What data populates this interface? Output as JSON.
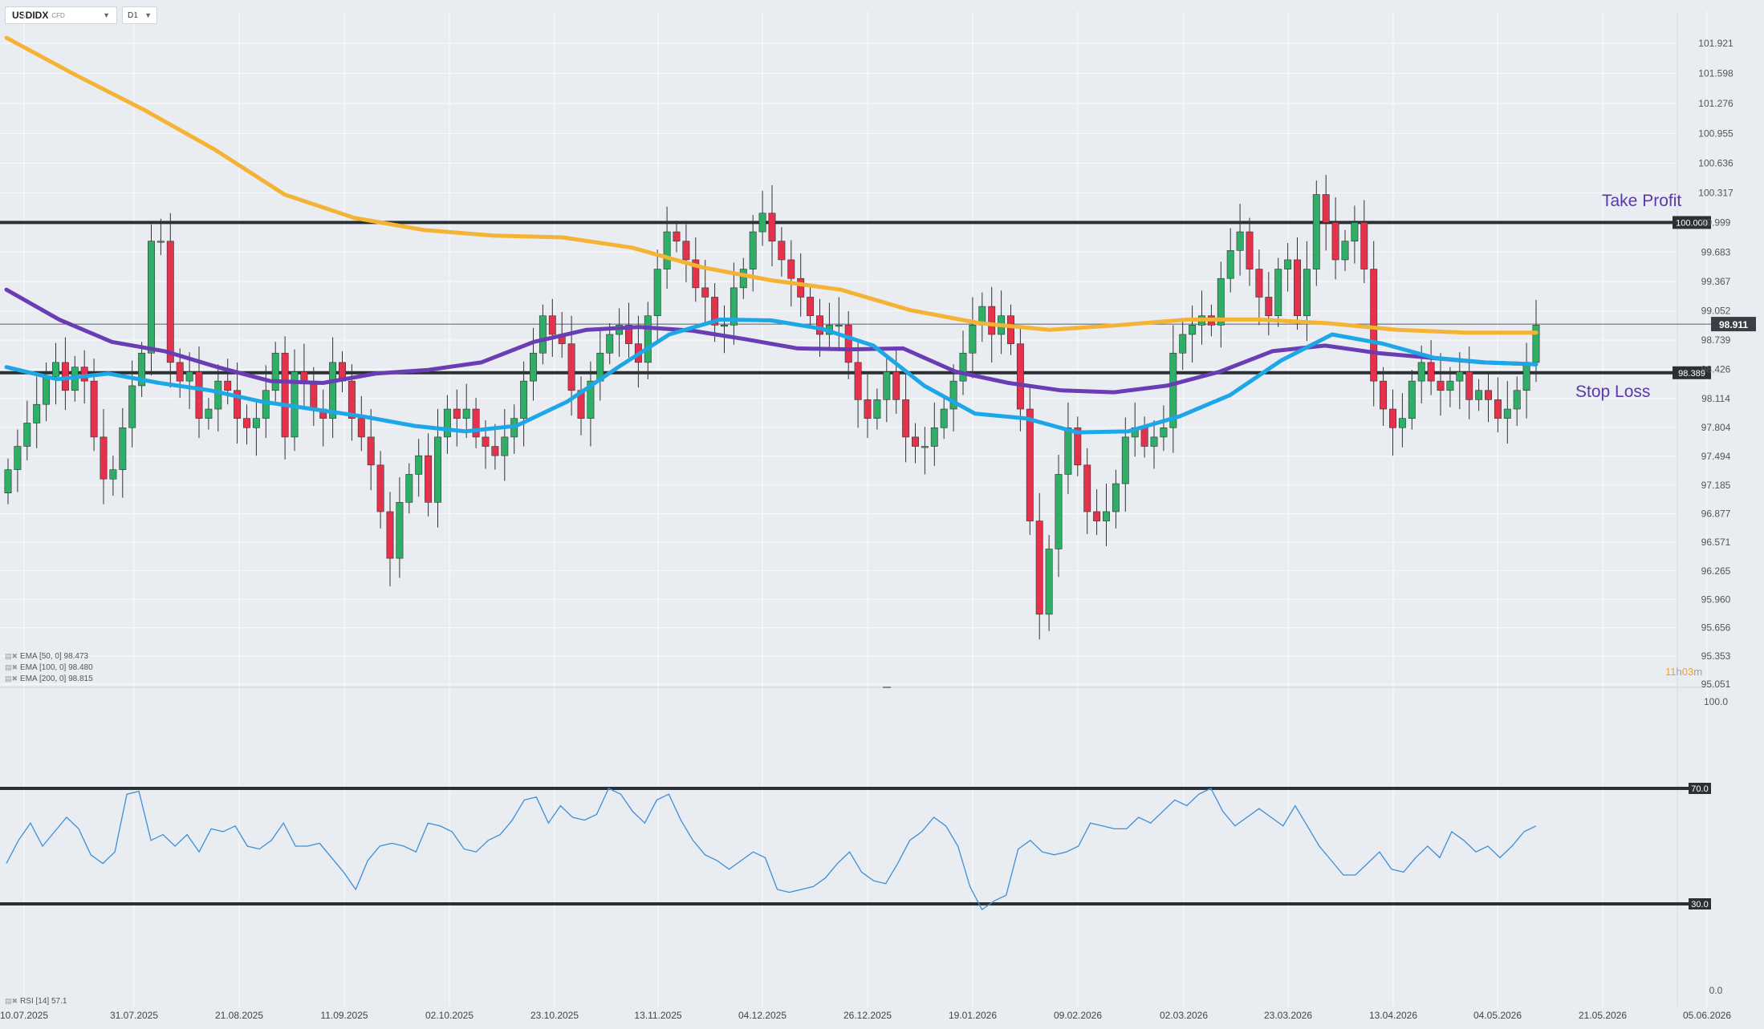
{
  "toolbar": {
    "symbol": "USDIDX",
    "symbol_badge": "CFD",
    "timeframe": "D1"
  },
  "indicators": {
    "ema50": {
      "label": "EMA [50, 0] 98.473",
      "color": "#1ea7e6"
    },
    "ema100": {
      "label": "EMA [100, 0] 98.480",
      "color": "#6a3db4"
    },
    "ema200": {
      "label": "EMA [200, 0] 98.815",
      "color": "#f5b335"
    },
    "rsi": {
      "label": "RSI [14] 57.1",
      "color": "#3d8fd9"
    }
  },
  "annotations": {
    "take_profit": "Take Profit",
    "stop_loss": "Stop Loss",
    "countdown_h": "11",
    "countdown_h_unit": "h",
    "countdown_m": "03",
    "countdown_m_unit": "m"
  },
  "colors": {
    "up": "#2eae67",
    "down": "#e5314b",
    "annotation": "#5a39a8",
    "hline": "#2b3035"
  },
  "chart_data": {
    "type": "candlestick",
    "price_axis": {
      "ylim": [
        95.051,
        102.2
      ],
      "ticks": [
        "101.921",
        "101.598",
        "101.276",
        "100.955",
        "100.636",
        "100.317",
        "99.999",
        "99.683",
        "99.367",
        "99.052",
        "98.739",
        "98.426",
        "98.114",
        "97.804",
        "97.494",
        "97.185",
        "96.877",
        "96.571",
        "96.265",
        "95.960",
        "95.656",
        "95.353",
        "95.051"
      ]
    },
    "date_axis": [
      "10.07.2025",
      "31.07.2025",
      "21.08.2025",
      "11.09.2025",
      "02.10.2025",
      "23.10.2025",
      "13.11.2025",
      "04.12.2025",
      "26.12.2025",
      "19.01.2026",
      "09.02.2026",
      "02.03.2026",
      "23.03.2026",
      "13.04.2026",
      "04.05.2026",
      "21.05.2026",
      "05.06.2026"
    ],
    "current_price": "98.911",
    "levels": [
      {
        "label": "100.000",
        "value": 100.0
      },
      {
        "label": "98.389",
        "value": 98.389
      }
    ],
    "closes": [
      97.35,
      97.6,
      97.85,
      98.05,
      98.35,
      98.5,
      98.2,
      98.45,
      98.3,
      97.7,
      97.25,
      97.35,
      97.8,
      98.25,
      98.6,
      99.8,
      99.8,
      98.5,
      98.3,
      98.4,
      97.9,
      98.0,
      98.3,
      98.2,
      97.9,
      97.8,
      97.9,
      98.2,
      98.6,
      97.7,
      98.4,
      98.3,
      98.0,
      97.9,
      98.5,
      98.3,
      97.9,
      97.7,
      97.4,
      96.9,
      96.4,
      97.0,
      97.3,
      97.5,
      97.0,
      97.7,
      98.0,
      97.9,
      98.0,
      97.7,
      97.6,
      97.5,
      97.7,
      97.9,
      98.3,
      98.6,
      99.0,
      98.8,
      98.7,
      98.2,
      97.9,
      98.3,
      98.6,
      98.8,
      98.9,
      98.7,
      98.5,
      99.0,
      99.5,
      99.9,
      99.8,
      99.6,
      99.3,
      99.2,
      98.9,
      98.9,
      99.3,
      99.5,
      99.9,
      100.1,
      99.8,
      99.6,
      99.4,
      99.2,
      99.0,
      98.8,
      98.9,
      98.9,
      98.5,
      98.1,
      97.9,
      98.1,
      98.4,
      98.1,
      97.7,
      97.6,
      97.6,
      97.8,
      98.0,
      98.3,
      98.6,
      98.9,
      99.1,
      98.8,
      99.0,
      98.7,
      98.0,
      96.8,
      95.8,
      96.5,
      97.3,
      97.8,
      97.4,
      96.9,
      96.8,
      96.9,
      97.2,
      97.7,
      97.8,
      97.6,
      97.7,
      97.8,
      98.6,
      98.8,
      98.9,
      99.0,
      98.9,
      99.4,
      99.7,
      99.9,
      99.5,
      99.2,
      99.0,
      99.5,
      99.6,
      99.0,
      99.5,
      100.3,
      100.0,
      99.6,
      99.8,
      100.0,
      99.5,
      98.3,
      98.0,
      97.8,
      97.9,
      98.3,
      98.5,
      98.3,
      98.2,
      98.3,
      98.4,
      98.1,
      98.2,
      98.1,
      97.9,
      98.0,
      98.2,
      98.5,
      98.9
    ],
    "ema50_series": [
      98.45,
      98.32,
      98.38,
      98.28,
      98.2,
      98.08,
      98.0,
      97.92,
      97.82,
      97.76,
      97.82,
      98.08,
      98.45,
      98.8,
      98.96,
      98.95,
      98.86,
      98.68,
      98.25,
      97.95,
      97.9,
      97.75,
      97.76,
      97.92,
      98.15,
      98.52,
      98.8,
      98.7,
      98.55,
      98.5,
      98.48
    ],
    "ema100_series": [
      99.28,
      98.96,
      98.72,
      98.62,
      98.45,
      98.3,
      98.28,
      98.38,
      98.42,
      98.5,
      98.72,
      98.85,
      98.88,
      98.84,
      98.75,
      98.65,
      98.64,
      98.65,
      98.4,
      98.28,
      98.2,
      98.18,
      98.25,
      98.4,
      98.62,
      98.68,
      98.6,
      98.55,
      98.5,
      98.48
    ],
    "ema200_series": [
      101.98,
      101.58,
      101.2,
      100.78,
      100.3,
      100.05,
      99.92,
      99.86,
      99.84,
      99.73,
      99.52,
      99.38,
      99.28,
      99.06,
      98.92,
      98.85,
      98.9,
      98.96,
      98.96,
      98.92,
      98.85,
      98.82,
      98.82
    ]
  },
  "rsi_data": {
    "levels": [
      {
        "label": "70.0",
        "value": 70
      },
      {
        "label": "30.0",
        "value": 30
      }
    ],
    "ticks": [
      "100.0",
      "0.0"
    ],
    "values": [
      44,
      52,
      58,
      50,
      55,
      60,
      56,
      47,
      44,
      48,
      68,
      69,
      52,
      54,
      50,
      54,
      48,
      56,
      55,
      57,
      50,
      49,
      52,
      58,
      50,
      50,
      51,
      46,
      41,
      35,
      45,
      50,
      51,
      50,
      48,
      58,
      57,
      55,
      49,
      48,
      52,
      54,
      59,
      66,
      67,
      58,
      64,
      60,
      59,
      61,
      70,
      68,
      62,
      58,
      66,
      68,
      59,
      52,
      47,
      45,
      42,
      45,
      48,
      46,
      35,
      34,
      35,
      36,
      39,
      44,
      48,
      41,
      38,
      37,
      44,
      52,
      55,
      60,
      57,
      50,
      36,
      28,
      31,
      33,
      49,
      52,
      48,
      47,
      48,
      50,
      58,
      57,
      56,
      56,
      60,
      58,
      62,
      66,
      64,
      68,
      70,
      62,
      57,
      60,
      63,
      60,
      57,
      64,
      57,
      50,
      45,
      40,
      40,
      44,
      48,
      42,
      41,
      46,
      50,
      46,
      55,
      52,
      48,
      50,
      46,
      50,
      55,
      57
    ]
  }
}
